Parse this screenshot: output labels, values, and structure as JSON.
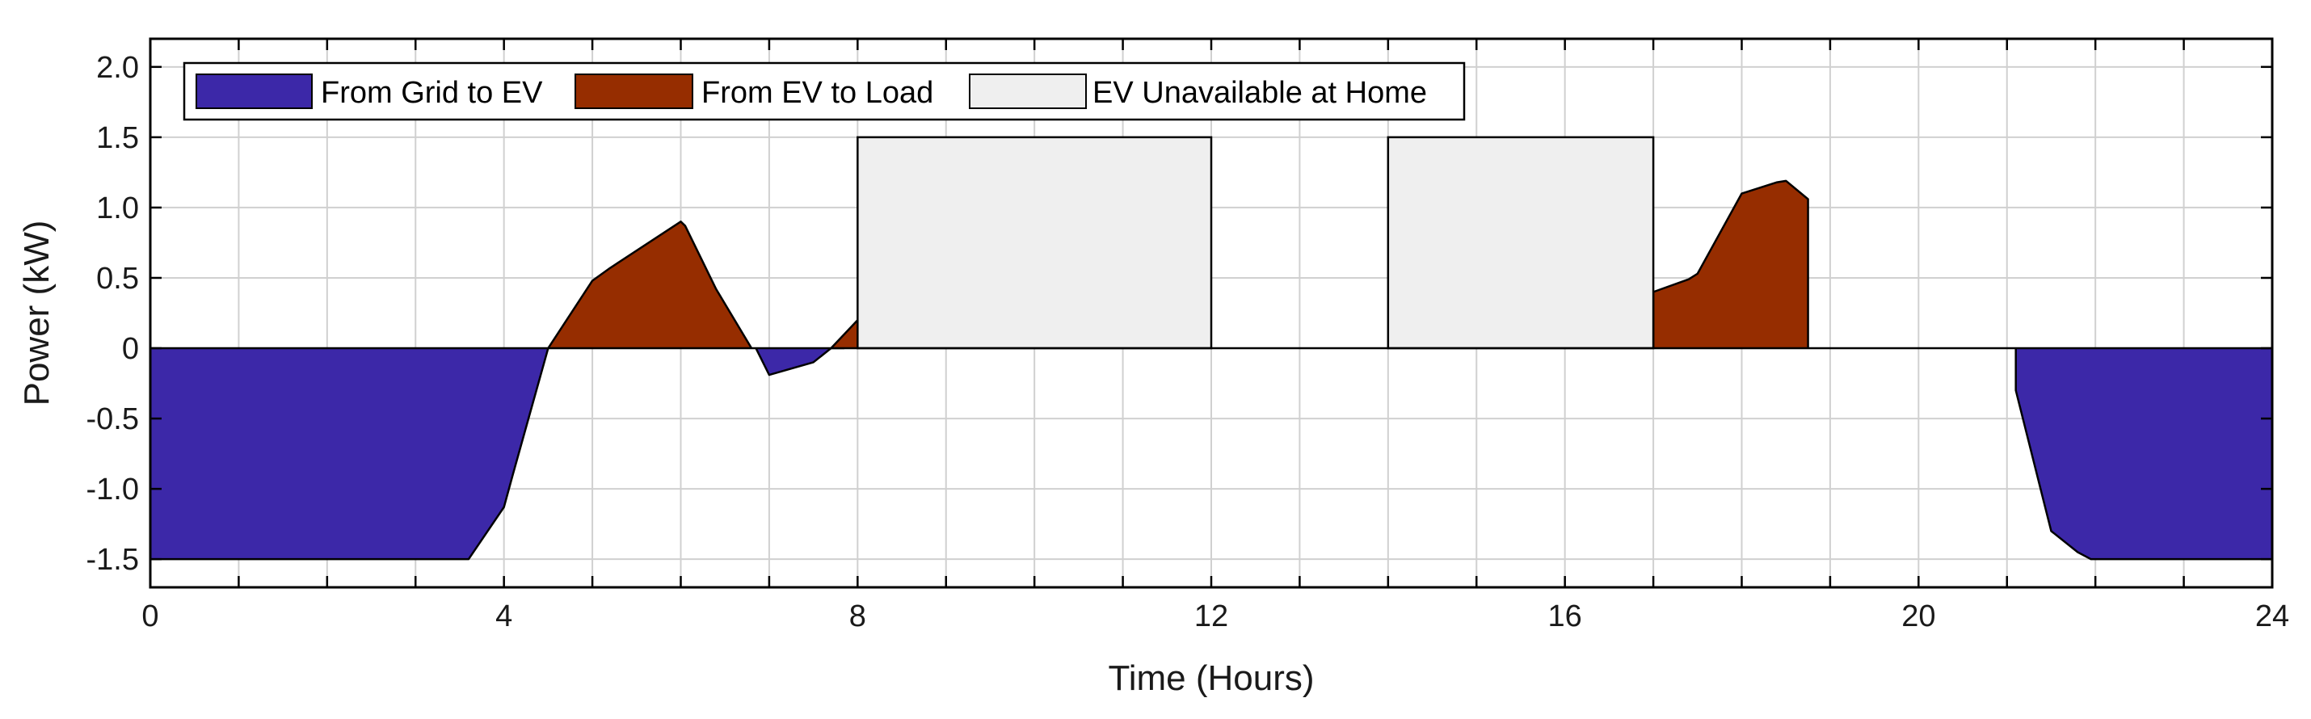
{
  "chart_data": {
    "type": "area",
    "xlabel": "Time (Hours)",
    "ylabel": "Power (kW)",
    "xlim": [
      0,
      24
    ],
    "ylim": [
      -1.7,
      2.2
    ],
    "x_ticks": [
      0,
      4,
      8,
      12,
      16,
      20,
      24
    ],
    "x_tick_labels": [
      "0",
      "4",
      "8",
      "12",
      "16",
      "20",
      "24"
    ],
    "x_minor_ticks": [
      1,
      2,
      3,
      5,
      6,
      7,
      9,
      10,
      11,
      13,
      14,
      15,
      17,
      18,
      19,
      21,
      22,
      23
    ],
    "y_ticks": [
      -1.5,
      -1.0,
      -0.5,
      0,
      0.5,
      1.0,
      1.5,
      2.0
    ],
    "y_tick_labels": [
      "-1.5",
      "-1.0",
      "-0.5",
      "0",
      "0.5",
      "1.0",
      "1.5",
      "2.0"
    ],
    "grid": true,
    "legend_position": "top-left",
    "colors": {
      "grid_to_ev": "#3c28a8",
      "ev_to_load": "#962d00",
      "ev_unavailable": "#efefef",
      "outline": "#000000",
      "gridline": "#d0d0d0"
    },
    "series": [
      {
        "name": "From Grid to EV",
        "key": "grid_to_ev",
        "segments": [
          {
            "x": [
              0,
              3.6,
              4.0,
              4.1,
              4.5
            ],
            "y": [
              -1.5,
              -1.5,
              -1.13,
              -0.9,
              0
            ]
          },
          {
            "x": [
              6.85,
              7.0,
              7.5,
              7.7,
              7.85
            ],
            "y": [
              0,
              -0.19,
              -0.1,
              0,
              0
            ]
          },
          {
            "x": [
              21.1,
              21.1,
              21.5,
              21.8,
              21.95,
              24,
              24
            ],
            "y": [
              0,
              -0.3,
              -1.3,
              -1.45,
              -1.5,
              -1.5,
              0
            ]
          }
        ]
      },
      {
        "name": "From EV to Load",
        "key": "ev_to_load",
        "segments": [
          {
            "x": [
              4.5,
              5.0,
              5.2,
              6.0,
              6.05,
              6.4,
              6.8
            ],
            "y": [
              0,
              0.48,
              0.57,
              0.9,
              0.87,
              0.42,
              0
            ]
          },
          {
            "x": [
              7.7,
              8.0
            ],
            "y": [
              0,
              0.2
            ]
          },
          {
            "x": [
              17.0,
              17.0,
              17.4,
              17.5,
              18.0,
              18.4,
              18.5,
              18.75,
              18.75
            ],
            "y": [
              0,
              0.4,
              0.49,
              0.53,
              1.1,
              1.18,
              1.19,
              1.06,
              0
            ]
          }
        ]
      },
      {
        "name": "EV Unavailable at Home",
        "key": "ev_unavailable",
        "blocks": [
          {
            "x0": 8,
            "x1": 12,
            "y0": 0,
            "y1": 1.5
          },
          {
            "x0": 14,
            "x1": 17,
            "y0": 0,
            "y1": 1.5
          }
        ]
      }
    ]
  }
}
